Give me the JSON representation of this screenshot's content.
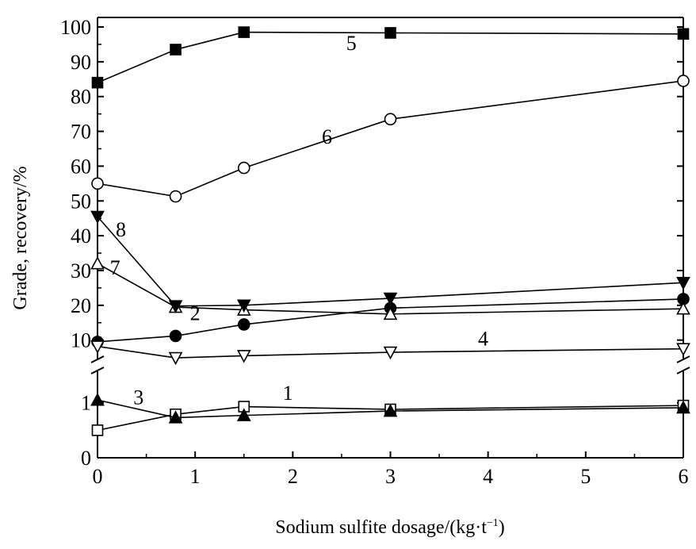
{
  "chart_data": {
    "type": "line",
    "xlabel": "Sodium sulfite dosage/(kg·t",
    "xlabel_sup": "−1",
    "xlabel_suffix": ")",
    "ylabel": "Grade, recovery/%",
    "x_ticks": [
      "0",
      "1",
      "2",
      "3",
      "4",
      "5",
      "6"
    ],
    "x_range": [
      0,
      6
    ],
    "y_break": true,
    "y_lower_range": [
      0,
      1.5
    ],
    "y_lower_ticks": [
      "0",
      "1"
    ],
    "y_upper_range": [
      4,
      100
    ],
    "y_upper_ticks": [
      "10",
      "20",
      "30",
      "40",
      "50",
      "60",
      "70",
      "80",
      "90",
      "100"
    ],
    "grid": false,
    "series": [
      {
        "name": "1",
        "marker": "square-open",
        "x": [
          0,
          0.8,
          1.5,
          3,
          6
        ],
        "y": [
          0.5,
          0.79,
          0.93,
          0.88,
          0.95
        ],
        "label_at": [
          1.95,
          1.05
        ]
      },
      {
        "name": "2",
        "marker": "circle-filled",
        "x": [
          0,
          0.8,
          1.5,
          3,
          6
        ],
        "y": [
          9.5,
          11.2,
          14.5,
          19.2,
          21.8
        ],
        "label_at": [
          1.0,
          15.8
        ]
      },
      {
        "name": "3",
        "marker": "triangle-up-filled",
        "x": [
          0,
          0.8,
          1.5,
          3,
          6
        ],
        "y": [
          1.05,
          0.73,
          0.77,
          0.85,
          0.91
        ],
        "label_at": [
          0.42,
          0.97
        ]
      },
      {
        "name": "4",
        "marker": "triangle-down-open",
        "x": [
          0,
          0.8,
          1.5,
          3,
          6
        ],
        "y": [
          8.2,
          4.9,
          5.5,
          6.5,
          7.5
        ],
        "label_at": [
          3.95,
          8.5
        ]
      },
      {
        "name": "5",
        "marker": "square-filled",
        "x": [
          0,
          0.8,
          1.5,
          3,
          6
        ],
        "y": [
          84,
          93.5,
          98.5,
          98.3,
          98
        ],
        "label_at": [
          2.6,
          93.4
        ]
      },
      {
        "name": "6",
        "marker": "circle-open",
        "x": [
          0,
          0.8,
          1.5,
          3,
          6
        ],
        "y": [
          55,
          51.3,
          59.5,
          73.5,
          84.5
        ],
        "label_at": [
          2.35,
          66.5
        ]
      },
      {
        "name": "7",
        "marker": "triangle-up-open",
        "x": [
          0,
          0.8,
          1.5,
          3,
          6
        ],
        "y": [
          32,
          19.5,
          18.7,
          17.5,
          19
        ],
        "label_at": [
          0.18,
          28.8
        ]
      },
      {
        "name": "8",
        "marker": "triangle-down-filled",
        "x": [
          0,
          0.8,
          1.5,
          3,
          6
        ],
        "y": [
          45.5,
          19.8,
          20,
          22,
          26.5
        ],
        "label_at": [
          0.24,
          39.8
        ]
      }
    ]
  }
}
